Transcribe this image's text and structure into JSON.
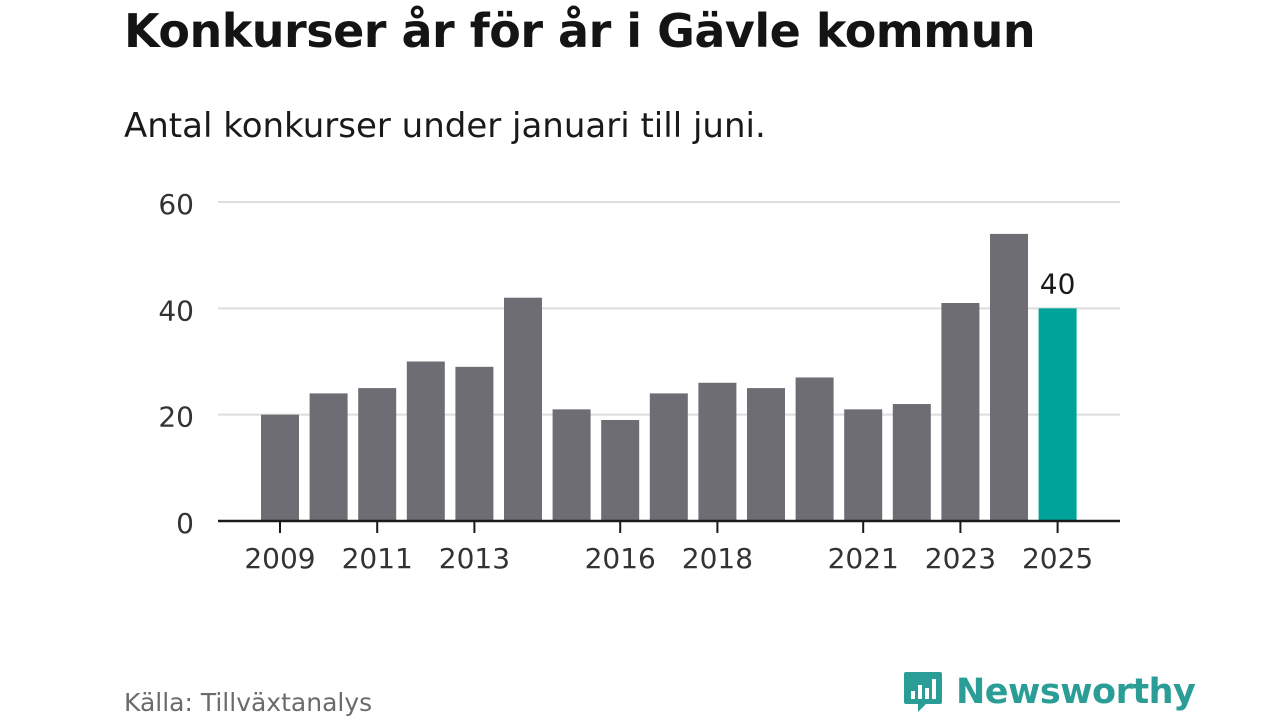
{
  "header": {
    "title": "Konkurser år för år i Gävle kommun",
    "subtitle": "Antal konkurser under januari till juni."
  },
  "footer": {
    "source": "Källa: Tillväxtanalys",
    "brand": "Newsworthy",
    "brand_icon": "bar-chart-speech-bubble-icon"
  },
  "colors": {
    "bar": "#6e6d73",
    "highlight": "#00a39a",
    "grid": "#dddddd",
    "axis": "#1a1a1a",
    "brand": "#2a9d96"
  },
  "chart_data": {
    "type": "bar",
    "categories": [
      "2009",
      "2010",
      "2011",
      "2012",
      "2013",
      "2014",
      "2015",
      "2016",
      "2017",
      "2018",
      "2019",
      "2020",
      "2021",
      "2022",
      "2023",
      "2024",
      "2025"
    ],
    "values": [
      20,
      24,
      25,
      30,
      29,
      42,
      21,
      19,
      24,
      26,
      25,
      27,
      21,
      22,
      41,
      54,
      40
    ],
    "highlight_index": 16,
    "highlight_label": "40",
    "x_tick_labels": [
      "2009",
      "2011",
      "2013",
      "2016",
      "2018",
      "2021",
      "2023",
      "2025"
    ],
    "y_ticks": [
      "0",
      "20",
      "40",
      "60"
    ],
    "ylim": [
      0,
      60
    ],
    "grid": true,
    "xlabel": "",
    "ylabel": ""
  }
}
